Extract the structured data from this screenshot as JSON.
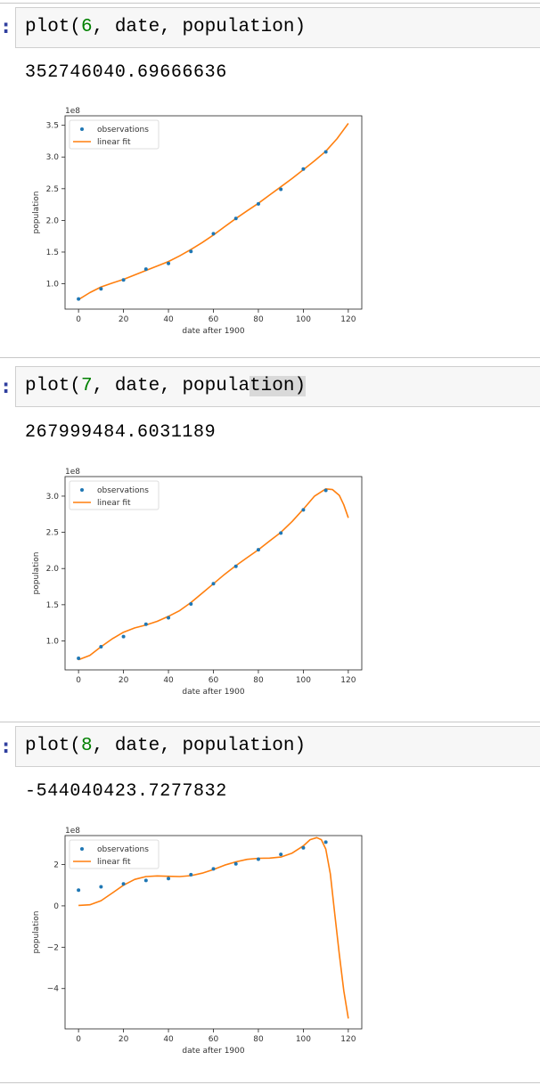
{
  "cells": [
    {
      "code": {
        "func": "plot(",
        "degree": "6",
        "rest_before_cursor": ", date, popula",
        "rest_cursor": "",
        "rest_after_cursor": "tion)"
      },
      "output": "352746040.69666636"
    },
    {
      "code": {
        "func": "plot(",
        "degree": "7",
        "rest_before_cursor": ", date, popula",
        "rest_cursor": "tion)",
        "rest_after_cursor": ""
      },
      "output": "267999484.6031189"
    },
    {
      "code": {
        "func": "plot(",
        "degree": "8",
        "rest_before_cursor": ", date, popula",
        "rest_cursor": "",
        "rest_after_cursor": "tion)"
      },
      "output": "-544040423.7277832"
    }
  ],
  "colors": {
    "observations": "#1f77b4",
    "fit": "#ff7f0e",
    "prompt": "#303f9f",
    "number": "#008000"
  },
  "chart_data": [
    {
      "type": "scatter+line",
      "xlabel": "date after 1900",
      "ylabel": "population",
      "scale_label": "1e8",
      "legend": [
        "observations",
        "linear fit"
      ],
      "legend_position": "top-left",
      "grid": false,
      "xlim": [
        -6,
        126
      ],
      "ylim": [
        0.6,
        3.65
      ],
      "xticks": [
        0,
        20,
        40,
        60,
        80,
        100,
        120
      ],
      "yticks": [
        1.0,
        1.5,
        2.0,
        2.5,
        3.0,
        3.5
      ],
      "ytick_labels": [
        "1.0",
        "1.5",
        "2.0",
        "2.5",
        "3.0",
        "3.5"
      ],
      "observations": {
        "x": [
          0,
          10,
          20,
          30,
          40,
          50,
          60,
          70,
          80,
          90,
          100,
          110
        ],
        "y": [
          0.76,
          0.92,
          1.06,
          1.23,
          1.32,
          1.51,
          1.79,
          2.03,
          2.26,
          2.49,
          2.81,
          3.08
        ]
      },
      "fit": {
        "x": [
          0,
          5,
          10,
          15,
          20,
          25,
          30,
          35,
          40,
          45,
          50,
          55,
          60,
          65,
          70,
          75,
          80,
          85,
          90,
          95,
          100,
          105,
          110,
          115,
          120
        ],
        "y": [
          0.75,
          0.86,
          0.95,
          1.01,
          1.07,
          1.14,
          1.21,
          1.28,
          1.35,
          1.44,
          1.54,
          1.65,
          1.77,
          1.9,
          2.03,
          2.15,
          2.27,
          2.4,
          2.53,
          2.66,
          2.8,
          2.94,
          3.09,
          3.29,
          3.53
        ]
      }
    },
    {
      "type": "scatter+line",
      "xlabel": "date after 1900",
      "ylabel": "population",
      "scale_label": "1e8",
      "legend": [
        "observations",
        "linear fit"
      ],
      "legend_position": "top-left",
      "grid": false,
      "xlim": [
        -6,
        126
      ],
      "ylim": [
        0.6,
        3.27
      ],
      "xticks": [
        0,
        20,
        40,
        60,
        80,
        100,
        120
      ],
      "yticks": [
        1.0,
        1.5,
        2.0,
        2.5,
        3.0
      ],
      "ytick_labels": [
        "1.0",
        "1.5",
        "2.0",
        "2.5",
        "3.0"
      ],
      "observations": {
        "x": [
          0,
          10,
          20,
          30,
          40,
          50,
          60,
          70,
          80,
          90,
          100,
          110
        ],
        "y": [
          0.76,
          0.92,
          1.06,
          1.23,
          1.32,
          1.51,
          1.79,
          2.03,
          2.26,
          2.49,
          2.81,
          3.08
        ]
      },
      "fit": {
        "x": [
          0,
          5,
          10,
          15,
          20,
          25,
          30,
          35,
          40,
          45,
          50,
          55,
          60,
          65,
          70,
          75,
          80,
          85,
          90,
          95,
          100,
          105,
          110,
          113,
          116,
          118,
          120
        ],
        "y": [
          0.74,
          0.8,
          0.92,
          1.03,
          1.12,
          1.18,
          1.22,
          1.27,
          1.34,
          1.42,
          1.53,
          1.66,
          1.79,
          1.92,
          2.04,
          2.15,
          2.26,
          2.38,
          2.5,
          2.65,
          2.82,
          3.0,
          3.1,
          3.09,
          3.01,
          2.88,
          2.7
        ]
      }
    },
    {
      "type": "scatter+line",
      "xlabel": "date after 1900",
      "ylabel": "population",
      "scale_label": "1e8",
      "legend": [
        "observations",
        "linear fit"
      ],
      "legend_position": "top-left",
      "grid": false,
      "xlim": [
        -6,
        126
      ],
      "ylim": [
        -5.95,
        3.4
      ],
      "xticks": [
        0,
        20,
        40,
        60,
        80,
        100,
        120
      ],
      "yticks": [
        -4,
        -2,
        0,
        2
      ],
      "ytick_labels": [
        "−4",
        "−2",
        "0",
        "2"
      ],
      "observations": {
        "x": [
          0,
          10,
          20,
          30,
          40,
          50,
          60,
          70,
          80,
          90,
          100,
          110
        ],
        "y": [
          0.76,
          0.92,
          1.06,
          1.23,
          1.32,
          1.51,
          1.79,
          2.03,
          2.26,
          2.49,
          2.81,
          3.08
        ]
      },
      "fit": {
        "x": [
          0,
          5,
          10,
          15,
          20,
          25,
          30,
          35,
          40,
          45,
          50,
          55,
          60,
          65,
          70,
          75,
          80,
          85,
          90,
          95,
          100,
          103,
          106,
          108,
          110,
          112,
          114,
          116,
          118,
          120
        ],
        "y": [
          0.02,
          0.05,
          0.25,
          0.62,
          1.0,
          1.28,
          1.42,
          1.45,
          1.43,
          1.42,
          1.46,
          1.58,
          1.76,
          1.97,
          2.13,
          2.25,
          2.3,
          2.31,
          2.36,
          2.55,
          2.9,
          3.2,
          3.3,
          3.2,
          2.75,
          1.55,
          -0.4,
          -2.35,
          -4.1,
          -5.45
        ]
      }
    }
  ]
}
